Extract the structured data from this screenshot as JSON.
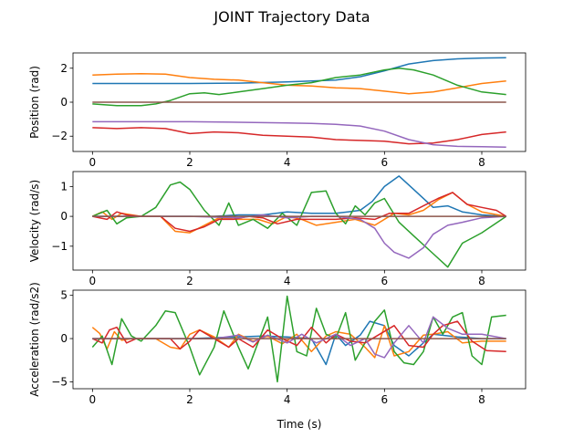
{
  "figure": {
    "title": "JOINT Trajectory Data",
    "xlabel": "Time (s)"
  },
  "chart_data": [
    {
      "type": "line",
      "ylabel": "Position (rad)",
      "xlim": [
        -0.4,
        8.9
      ],
      "ylim": [
        -2.9,
        2.9
      ],
      "xticks": [
        0,
        2,
        4,
        6,
        8
      ],
      "yticks": [
        -2,
        0,
        2
      ],
      "grid": false,
      "series": [
        {
          "color": "#1f77b4",
          "x": [
            0,
            1,
            2,
            3,
            4,
            4.5,
            5,
            5.5,
            6,
            6.5,
            7,
            7.5,
            8,
            8.5
          ],
          "y": [
            1.1,
            1.1,
            1.1,
            1.12,
            1.2,
            1.25,
            1.3,
            1.5,
            1.85,
            2.25,
            2.45,
            2.55,
            2.6,
            2.62
          ]
        },
        {
          "color": "#ff7f0e",
          "x": [
            0,
            0.5,
            1,
            1.5,
            2,
            2.5,
            3,
            3.5,
            4,
            4.5,
            5,
            5.5,
            6,
            6.5,
            7,
            7.5,
            8,
            8.5
          ],
          "y": [
            1.6,
            1.65,
            1.68,
            1.65,
            1.45,
            1.35,
            1.3,
            1.15,
            1.0,
            0.95,
            0.85,
            0.8,
            0.65,
            0.5,
            0.6,
            0.85,
            1.1,
            1.25
          ]
        },
        {
          "color": "#2ca02c",
          "x": [
            0,
            0.5,
            1,
            1.3,
            1.6,
            2,
            2.3,
            2.6,
            3,
            3.5,
            4,
            4.5,
            5,
            5.5,
            6,
            6.3,
            6.6,
            7,
            7.5,
            8,
            8.5
          ],
          "y": [
            -0.1,
            -0.2,
            -0.2,
            -0.1,
            0.1,
            0.5,
            0.55,
            0.45,
            0.6,
            0.8,
            1.0,
            1.15,
            1.45,
            1.6,
            1.9,
            2.0,
            1.9,
            1.6,
            1.0,
            0.6,
            0.45
          ]
        },
        {
          "color": "#d62728",
          "x": [
            0,
            0.5,
            1,
            1.5,
            2,
            2.5,
            3,
            3.5,
            4,
            4.5,
            5,
            5.5,
            6,
            6.5,
            7,
            7.5,
            8,
            8.5
          ],
          "y": [
            -1.5,
            -1.55,
            -1.5,
            -1.55,
            -1.85,
            -1.75,
            -1.8,
            -1.95,
            -2.0,
            -2.05,
            -2.2,
            -2.25,
            -2.3,
            -2.45,
            -2.4,
            -2.2,
            -1.9,
            -1.75
          ]
        },
        {
          "color": "#9467bd",
          "x": [
            0,
            1,
            2,
            3,
            4,
            4.5,
            5,
            5.5,
            6,
            6.5,
            7,
            7.5,
            8,
            8.5
          ],
          "y": [
            -1.15,
            -1.15,
            -1.15,
            -1.18,
            -1.22,
            -1.25,
            -1.3,
            -1.4,
            -1.7,
            -2.2,
            -2.5,
            -2.6,
            -2.62,
            -2.65
          ]
        },
        {
          "color": "#8c564b",
          "x": [
            0,
            8.5
          ],
          "y": [
            0.0,
            0.0
          ]
        }
      ]
    },
    {
      "type": "line",
      "ylabel": "Velocity (rad/s)",
      "xlim": [
        -0.4,
        8.9
      ],
      "ylim": [
        -1.8,
        1.5
      ],
      "xticks": [
        0,
        2,
        4,
        6,
        8
      ],
      "yticks": [
        -1,
        0,
        1
      ],
      "grid": false,
      "series": [
        {
          "color": "#1f77b4",
          "x": [
            0,
            0.5,
            1,
            1.5,
            2,
            2.5,
            3,
            3.5,
            4,
            4.5,
            5,
            5.5,
            5.75,
            6,
            6.3,
            6.6,
            7,
            7.3,
            7.6,
            8,
            8.5
          ],
          "y": [
            0,
            0,
            0,
            0,
            0,
            0,
            0.05,
            0.05,
            0.15,
            0.1,
            0.1,
            0.2,
            0.5,
            1.0,
            1.35,
            0.9,
            0.3,
            0.35,
            0.15,
            0.05,
            0
          ]
        },
        {
          "color": "#ff7f0e",
          "x": [
            0,
            0.2,
            0.4,
            0.6,
            1,
            1.4,
            1.7,
            2,
            2.3,
            2.6,
            3,
            3.4,
            3.7,
            4,
            4.3,
            4.6,
            5,
            5.4,
            5.8,
            6.2,
            6.5,
            6.8,
            7.1,
            7.4,
            7.7,
            8,
            8.5
          ],
          "y": [
            0,
            0.15,
            -0.1,
            0.1,
            0,
            0,
            -0.5,
            -0.55,
            -0.3,
            -0.05,
            -0.1,
            -0.1,
            -0.25,
            0,
            -0.1,
            -0.3,
            -0.2,
            -0.1,
            -0.3,
            0.1,
            0.05,
            0.2,
            0.55,
            0.8,
            0.4,
            0.15,
            0
          ]
        },
        {
          "color": "#2ca02c",
          "x": [
            0,
            0.3,
            0.5,
            0.7,
            1,
            1.3,
            1.6,
            1.8,
            2,
            2.3,
            2.6,
            2.8,
            3,
            3.3,
            3.6,
            3.9,
            4.2,
            4.5,
            4.8,
            5,
            5.2,
            5.4,
            5.6,
            5.8,
            6,
            6.3,
            6.6,
            7,
            7.3,
            7.6,
            8,
            8.5
          ],
          "y": [
            0,
            0.2,
            -0.25,
            -0.05,
            0,
            0.3,
            1.05,
            1.15,
            0.9,
            0.2,
            -0.3,
            0.45,
            -0.3,
            -0.1,
            -0.4,
            0.1,
            -0.3,
            0.8,
            0.85,
            0.1,
            -0.25,
            0.35,
            0.05,
            0.45,
            0.6,
            -0.2,
            -0.65,
            -1.25,
            -1.7,
            -0.9,
            -0.55,
            0
          ]
        },
        {
          "color": "#d62728",
          "x": [
            0,
            0.3,
            0.5,
            0.7,
            1,
            1.4,
            1.7,
            2,
            2.3,
            2.6,
            2.9,
            3.2,
            3.5,
            3.8,
            4.2,
            4.6,
            5,
            5.4,
            5.8,
            6.1,
            6.5,
            6.8,
            7.1,
            7.4,
            7.7,
            8,
            8.3,
            8.5
          ],
          "y": [
            0,
            -0.1,
            0.15,
            0.05,
            0,
            0,
            -0.4,
            -0.5,
            -0.35,
            -0.1,
            -0.1,
            0,
            -0.05,
            -0.25,
            -0.1,
            -0.1,
            -0.1,
            -0.05,
            -0.1,
            0.1,
            0.1,
            0.35,
            0.6,
            0.8,
            0.4,
            0.3,
            0.2,
            0
          ]
        },
        {
          "color": "#9467bd",
          "x": [
            0,
            1,
            2,
            3,
            3.5,
            4,
            4.5,
            5,
            5.5,
            5.8,
            6,
            6.2,
            6.5,
            6.8,
            7,
            7.3,
            7.6,
            8,
            8.5
          ],
          "y": [
            0,
            0,
            0,
            -0.05,
            0.05,
            -0.05,
            0,
            0,
            -0.1,
            -0.4,
            -0.9,
            -1.2,
            -1.4,
            -1.05,
            -0.6,
            -0.3,
            -0.2,
            -0.05,
            0
          ]
        },
        {
          "color": "#8c564b",
          "x": [
            0,
            8.5
          ],
          "y": [
            0.0,
            0.0
          ]
        }
      ]
    },
    {
      "type": "line",
      "ylabel": "Acceleration (rad/s2)",
      "xlim": [
        -0.4,
        8.9
      ],
      "ylim": [
        -5.8,
        5.6
      ],
      "xticks": [
        0,
        2,
        4,
        6,
        8
      ],
      "yticks": [
        -5,
        0,
        5
      ],
      "grid": false,
      "series": [
        {
          "color": "#1f77b4",
          "x": [
            0,
            0.5,
            1,
            1.5,
            2,
            2.5,
            3,
            3.5,
            4,
            4.5,
            4.8,
            5,
            5.2,
            5.5,
            5.7,
            6,
            6.2,
            6.5,
            7,
            7.5,
            8,
            8.5
          ],
          "y": [
            0,
            0,
            0,
            0,
            0,
            0.1,
            0.2,
            0.3,
            0.2,
            0,
            -3.0,
            0.5,
            -0.8,
            0.4,
            2.0,
            1.5,
            -0.8,
            -2.0,
            0.5,
            0.2,
            0,
            0
          ]
        },
        {
          "color": "#ff7f0e",
          "x": [
            0,
            0.15,
            0.3,
            0.45,
            0.6,
            0.8,
            1,
            1.3,
            1.6,
            1.8,
            2,
            2.2,
            2.5,
            2.8,
            3,
            3.3,
            3.6,
            3.9,
            4.2,
            4.5,
            4.8,
            5,
            5.3,
            5.6,
            5.8,
            6,
            6.2,
            6.5,
            6.8,
            7,
            7.3,
            7.6,
            8,
            8.5
          ],
          "y": [
            1.3,
            0.6,
            -1.2,
            0.8,
            -0.2,
            0,
            0,
            0,
            -1.0,
            -1.2,
            0.5,
            1.0,
            0.2,
            -1.0,
            0.5,
            -0.3,
            0.3,
            -0.6,
            0.5,
            -1.5,
            0.3,
            0.8,
            0.5,
            -1.0,
            -2.2,
            1.5,
            -2.0,
            -1.5,
            0.4,
            0.5,
            0.8,
            -0.5,
            -0.3,
            -0.3
          ]
        },
        {
          "color": "#2ca02c",
          "x": [
            0,
            0.2,
            0.4,
            0.6,
            0.8,
            1,
            1.3,
            1.5,
            1.7,
            2,
            2.2,
            2.5,
            2.7,
            3,
            3.2,
            3.4,
            3.6,
            3.8,
            4,
            4.2,
            4.4,
            4.6,
            4.8,
            5,
            5.2,
            5.4,
            5.6,
            5.8,
            6,
            6.2,
            6.4,
            6.6,
            6.8,
            7,
            7.2,
            7.4,
            7.6,
            7.8,
            8,
            8.2,
            8.5
          ],
          "y": [
            -1.0,
            0.3,
            -3.0,
            2.3,
            0.3,
            -0.3,
            1.5,
            3.2,
            3.0,
            -1.0,
            -4.2,
            -1.0,
            3.2,
            -1.0,
            -3.5,
            -0.5,
            2.5,
            -5.0,
            4.9,
            -1.5,
            -2.0,
            3.5,
            0.5,
            0,
            3.0,
            -2.5,
            -0.5,
            2.0,
            3.3,
            -1.5,
            -2.8,
            -3.0,
            -1.5,
            2.5,
            0.5,
            2.5,
            3.0,
            -2.0,
            -3.0,
            2.5,
            2.7
          ]
        },
        {
          "color": "#d62728",
          "x": [
            0,
            0.2,
            0.35,
            0.5,
            0.7,
            0.9,
            1.2,
            1.6,
            1.8,
            2,
            2.2,
            2.5,
            2.8,
            3,
            3.3,
            3.6,
            3.9,
            4.2,
            4.5,
            4.8,
            5,
            5.3,
            5.6,
            5.9,
            6.2,
            6.5,
            6.8,
            7,
            7.2,
            7.5,
            7.8,
            8.1,
            8.5
          ],
          "y": [
            0,
            -0.5,
            1.0,
            1.3,
            -0.5,
            0,
            0,
            0,
            -1.2,
            -0.3,
            1.0,
            0,
            -1.0,
            0,
            -1.0,
            1.0,
            0,
            -0.8,
            1.3,
            -0.5,
            0.5,
            -0.3,
            -0.5,
            0.5,
            1.5,
            -0.8,
            -1.0,
            0.5,
            1.5,
            2.0,
            -0.3,
            -1.4,
            -1.5
          ]
        },
        {
          "color": "#9467bd",
          "x": [
            0,
            1,
            2,
            2.5,
            3,
            3.3,
            3.6,
            4,
            4.3,
            4.6,
            5,
            5.3,
            5.6,
            5.8,
            6,
            6.2,
            6.5,
            6.8,
            7,
            7.3,
            7.6,
            8,
            8.5
          ],
          "y": [
            0,
            0,
            0,
            0,
            0.4,
            -0.4,
            0.4,
            -0.5,
            0.5,
            -0.5,
            0.5,
            -0.8,
            0,
            -1.8,
            -2.2,
            -0.5,
            1.5,
            -0.5,
            2.5,
            1.2,
            0.5,
            0.5,
            0
          ]
        },
        {
          "color": "#8c564b",
          "x": [
            0,
            8.5
          ],
          "y": [
            0.0,
            0.0
          ]
        }
      ]
    }
  ]
}
